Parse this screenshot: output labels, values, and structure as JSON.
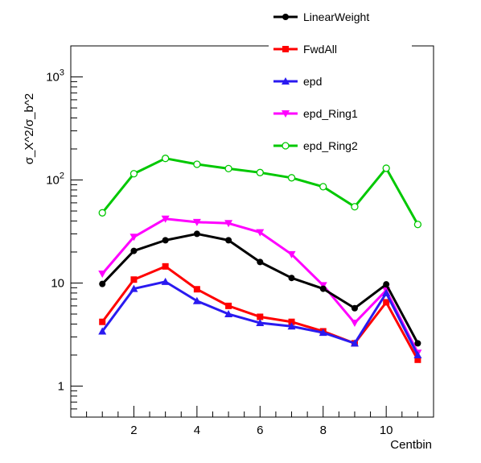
{
  "chart_data": {
    "type": "line",
    "title": "",
    "xlabel": "Centbin",
    "ylabel": "σ_X^2/σ_b^2",
    "xlim": [
      0,
      11.5
    ],
    "ylim": [
      0.5,
      2000
    ],
    "yscale": "log",
    "grid": false,
    "legend_position": "top-right",
    "x_ticks": [
      2,
      4,
      6,
      8,
      10
    ],
    "x_tick_labels": [
      "2",
      "4",
      "6",
      "8",
      "10"
    ],
    "y_ticks": [
      1,
      10,
      100,
      1000
    ],
    "y_tick_labels": [
      "1",
      "10",
      "10^2",
      "10^3"
    ],
    "x": [
      1,
      2,
      3,
      4,
      5,
      6,
      7,
      8,
      9,
      10,
      11
    ],
    "series": [
      {
        "name": "LinearWeight",
        "color": "#000000",
        "marker": "filled-circle",
        "values": [
          9.8,
          20.5,
          26,
          30,
          26,
          16,
          11.2,
          8.8,
          5.7,
          9.7,
          2.6
        ]
      },
      {
        "name": "FwdAll",
        "color": "#ff0000",
        "marker": "filled-square",
        "values": [
          4.2,
          10.8,
          14.5,
          8.7,
          6.0,
          4.7,
          4.2,
          3.4,
          2.6,
          6.5,
          1.8
        ]
      },
      {
        "name": "epd",
        "color": "#2a1af0",
        "marker": "filled-triangle-up",
        "values": [
          3.4,
          8.8,
          10.3,
          6.7,
          5.0,
          4.1,
          3.8,
          3.3,
          2.6,
          8.0,
          2.0
        ]
      },
      {
        "name": "epd_Ring1",
        "color": "#ff00ff",
        "marker": "filled-triangle-down",
        "values": [
          12.3,
          28.0,
          42.0,
          39.0,
          38.0,
          31.0,
          19.0,
          9.5,
          4.1,
          8.5,
          2.1
        ]
      },
      {
        "name": "epd_Ring2",
        "color": "#00c800",
        "marker": "open-circle",
        "values": [
          48,
          115,
          162,
          142,
          129,
          118,
          105,
          86,
          55,
          130,
          37
        ]
      }
    ]
  }
}
